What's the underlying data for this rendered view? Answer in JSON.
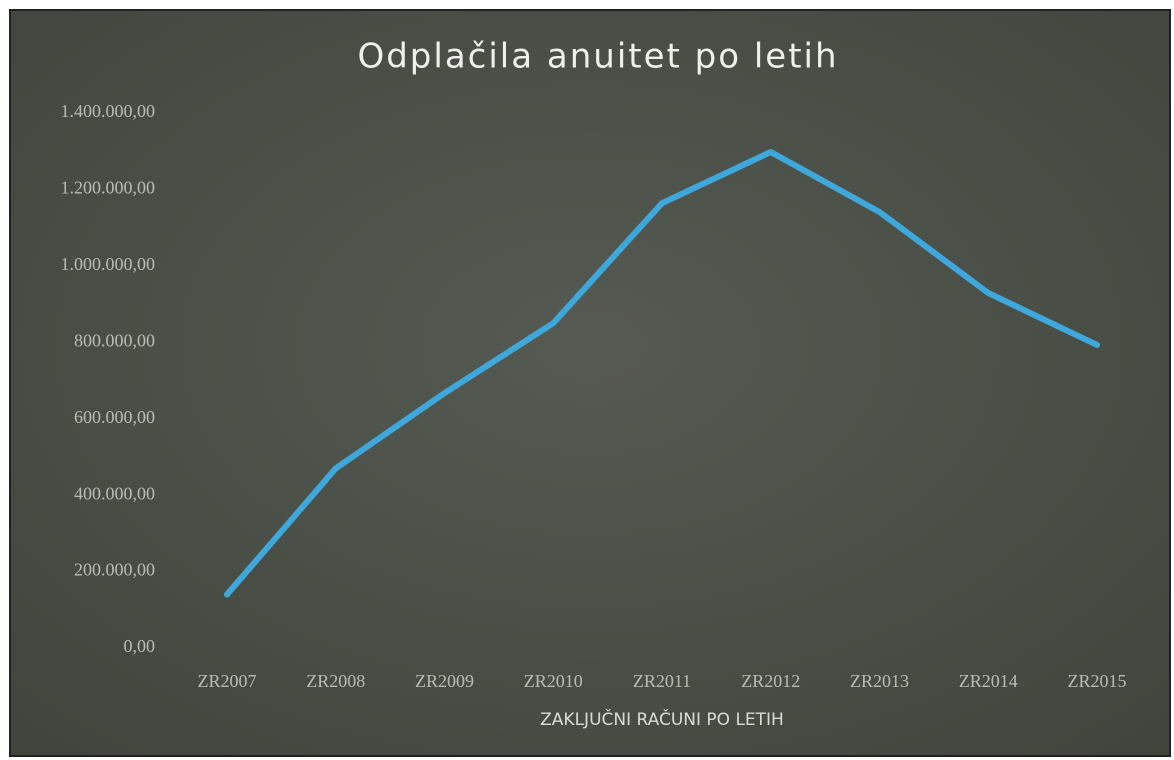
{
  "chart_data": {
    "type": "line",
    "title": "Odplačila anuitet po letih",
    "x_label": "ZAKLJUČNI RAČUNI PO LETIH",
    "categories": [
      "ZR2007",
      "ZR2008",
      "ZR2009",
      "ZR2010",
      "ZR2011",
      "ZR2012",
      "ZR2013",
      "ZR2014",
      "ZR2015"
    ],
    "series": [
      {
        "name": "Odplačila anuitet",
        "color": "#3ea8dc",
        "values": [
          140000,
          470000,
          667000,
          850000,
          1164000,
          1298000,
          1141000,
          929000,
          793000
        ]
      }
    ],
    "ylim": [
      0,
      1400000
    ],
    "yticks": [
      {
        "value": 0,
        "label": "0,00"
      },
      {
        "value": 200000,
        "label": "200.000,00"
      },
      {
        "value": 400000,
        "label": "400.000,00"
      },
      {
        "value": 600000,
        "label": "600.000,00"
      },
      {
        "value": 800000,
        "label": "800.000,00"
      },
      {
        "value": 1000000,
        "label": "1.000.000,00"
      },
      {
        "value": 1200000,
        "label": "1.200.000,00"
      },
      {
        "value": 1400000,
        "label": "1.400.000,00"
      }
    ],
    "grid": false,
    "legend": false
  }
}
